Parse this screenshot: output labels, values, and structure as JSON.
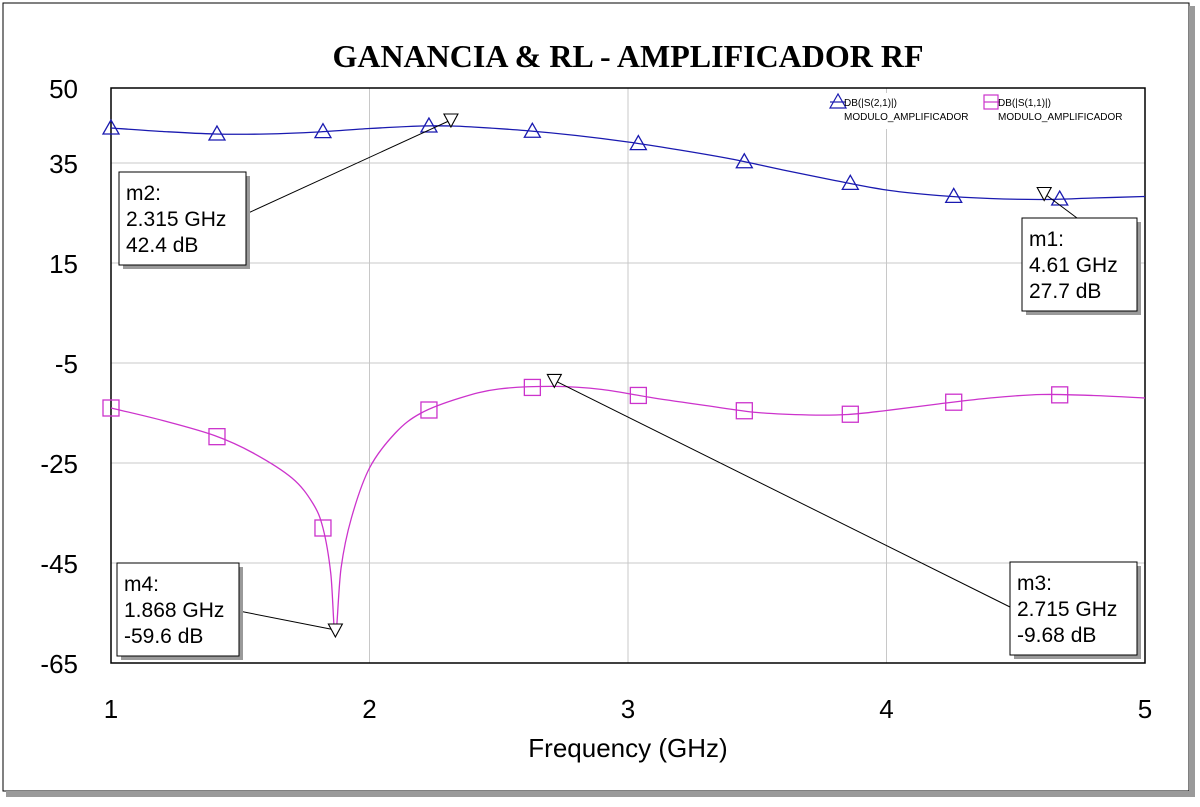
{
  "chart_data": {
    "type": "line",
    "title": "GANANCIA & RL - AMPLIFICADOR RF",
    "xlabel": "Frequency (GHz)",
    "ylabel": "",
    "xlim": [
      1,
      5
    ],
    "ylim": [
      -65,
      50
    ],
    "x_ticks": [
      "1",
      "2",
      "3",
      "4",
      "5"
    ],
    "y_ticks": [
      "50",
      "35",
      "15",
      "-5",
      "-25",
      "-45",
      "-65"
    ],
    "grid": true,
    "legend_position": "top-right",
    "series": [
      {
        "name": "DB(|S(2,1)|)",
        "name_sub": "MODULO_AMPLIFICADOR",
        "color": "#1a1ab0",
        "marker": "triangle-up",
        "x": [
          1.0,
          1.2,
          1.4,
          1.6,
          1.8,
          2.0,
          2.2,
          2.315,
          2.4,
          2.6,
          2.8,
          3.0,
          3.2,
          3.4,
          3.6,
          3.8,
          4.0,
          4.2,
          4.4,
          4.61,
          4.8,
          5.0
        ],
        "values": [
          42.0,
          41.3,
          40.8,
          40.8,
          41.2,
          41.9,
          42.4,
          42.4,
          42.2,
          41.5,
          40.5,
          39.2,
          37.6,
          35.8,
          33.6,
          31.5,
          29.6,
          28.5,
          27.9,
          27.7,
          28.0,
          28.3
        ],
        "marker_x": [
          1.0,
          1.41,
          1.82,
          2.23,
          2.63,
          3.04,
          3.45,
          3.86,
          4.26,
          4.67
        ]
      },
      {
        "name": "DB(|S(1,1)|)",
        "name_sub": "MODULO_AMPLIFICADOR",
        "color": "#cc33cc",
        "marker": "square",
        "x": [
          1.0,
          1.2,
          1.4,
          1.55,
          1.7,
          1.78,
          1.82,
          1.85,
          1.868,
          1.89,
          1.93,
          2.0,
          2.1,
          2.2,
          2.35,
          2.5,
          2.715,
          2.9,
          3.1,
          3.3,
          3.5,
          3.7,
          3.85,
          4.0,
          4.2,
          4.4,
          4.6,
          4.8,
          5.0
        ],
        "values": [
          -14.0,
          -16.5,
          -19.5,
          -23.0,
          -28.0,
          -33.0,
          -38.0,
          -47.0,
          -59.6,
          -46.0,
          -36.0,
          -26.0,
          -19.0,
          -15.0,
          -12.0,
          -10.2,
          -9.68,
          -10.3,
          -12.0,
          -13.5,
          -14.9,
          -15.4,
          -15.3,
          -14.5,
          -13.2,
          -12.0,
          -11.3,
          -11.5,
          -12.0
        ],
        "marker_x": [
          1.0,
          1.41,
          1.82,
          2.23,
          2.63,
          3.04,
          3.45,
          3.86,
          4.26,
          4.67
        ]
      }
    ],
    "markers": [
      {
        "id": "m1",
        "x": 4.61,
        "y": 27.7,
        "label_name": "m1:",
        "label_freq": "4.61 GHz",
        "label_val": "27.7 dB",
        "box_pos": "right-upper"
      },
      {
        "id": "m2",
        "x": 2.315,
        "y": 42.4,
        "label_name": "m2:",
        "label_freq": "2.315 GHz",
        "label_val": "42.4 dB",
        "box_pos": "left-upper"
      },
      {
        "id": "m3",
        "x": 2.715,
        "y": -9.68,
        "label_name": "m3:",
        "label_freq": "2.715 GHz",
        "label_val": "-9.68 dB",
        "box_pos": "right-lower"
      },
      {
        "id": "m4",
        "x": 1.868,
        "y": -59.6,
        "label_name": "m4:",
        "label_freq": "1.868 GHz",
        "label_val": "-59.6 dB",
        "box_pos": "left-lower"
      }
    ]
  }
}
